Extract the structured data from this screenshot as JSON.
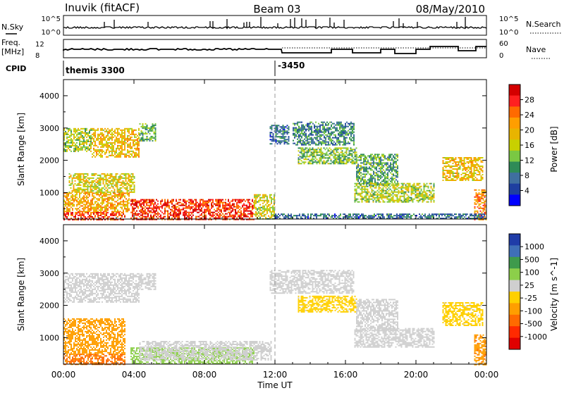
{
  "header": {
    "station": "Inuvik (fitACF)",
    "beam": "Beam 03",
    "date": "08/May/2010"
  },
  "nsky_panel": {
    "left_label": "N.Sky",
    "left_ticks": [
      "10^5",
      "10^0"
    ],
    "right_label": "N.Search",
    "right_ticks": [
      "10^5",
      "10^0"
    ]
  },
  "freq_panel": {
    "left_label_1": "Freq.",
    "left_label_2": "[MHz]",
    "left_ticks": [
      "12",
      "8"
    ],
    "right_label": "Nave",
    "right_ticks": [
      "60",
      "0"
    ]
  },
  "cpid_panel": {
    "label": "CPID",
    "entries": [
      "themis 3300",
      "-3450"
    ]
  },
  "time_axis": {
    "title": "Time UT",
    "ticks": [
      "00:00",
      "04:00",
      "08:00",
      "12:00",
      "16:00",
      "20:00",
      "00:00"
    ]
  },
  "chart_data": [
    {
      "type": "heatmap",
      "title": "",
      "ylabel": "Slant Range [km]",
      "xlabel": "Time UT",
      "xlim": [
        0,
        24
      ],
      "ylim": [
        180,
        4500
      ],
      "yticks": [
        1000,
        2000,
        3000,
        4000
      ],
      "colorbar_label": "Power [dB]",
      "colorbar_ticks": [
        "28",
        "24",
        "20",
        "16",
        "12",
        "8",
        "4"
      ],
      "colorbar_colors": [
        "#d40000",
        "#ff2020",
        "#ff6a00",
        "#ff9e00",
        "#e8b400",
        "#c8d000",
        "#7ac843",
        "#2e8b57",
        "#3f6fa0",
        "#1e3fa0",
        "#0000ff"
      ],
      "echo_regions": [
        {
          "t0": 0.0,
          "t1": 1.6,
          "r0": 2300,
          "r1": 3000,
          "level": 14
        },
        {
          "t0": 1.6,
          "t1": 4.3,
          "r0": 2100,
          "r1": 3000,
          "level": 18
        },
        {
          "t0": 4.3,
          "t1": 5.2,
          "r0": 2600,
          "r1": 3150,
          "level": 10
        },
        {
          "t0": 0.3,
          "t1": 4.0,
          "r0": 1000,
          "r1": 1600,
          "level": 16
        },
        {
          "t0": 0.0,
          "t1": 3.7,
          "r0": 400,
          "r1": 1000,
          "level": 20
        },
        {
          "t0": 0.0,
          "t1": 3.5,
          "r0": 180,
          "r1": 400,
          "level": 26
        },
        {
          "t0": 3.8,
          "t1": 10.8,
          "r0": 180,
          "r1": 800,
          "level": 27
        },
        {
          "t0": 10.8,
          "t1": 12.0,
          "r0": 180,
          "r1": 950,
          "level": 15
        },
        {
          "t0": 11.7,
          "t1": 12.8,
          "r0": 2500,
          "r1": 3100,
          "level": 6
        },
        {
          "t0": 13.0,
          "t1": 16.5,
          "r0": 2500,
          "r1": 3200,
          "level": 8
        },
        {
          "t0": 13.3,
          "t1": 16.6,
          "r0": 1900,
          "r1": 2400,
          "level": 12
        },
        {
          "t0": 16.6,
          "t1": 19.0,
          "r0": 1200,
          "r1": 2200,
          "level": 10
        },
        {
          "t0": 16.5,
          "t1": 21.0,
          "r0": 700,
          "r1": 1300,
          "level": 14
        },
        {
          "t0": 21.5,
          "t1": 23.8,
          "r0": 1400,
          "r1": 2100,
          "level": 18
        },
        {
          "t0": 23.3,
          "t1": 24.0,
          "r0": 180,
          "r1": 1100,
          "level": 22
        },
        {
          "t0": 12.0,
          "t1": 24.0,
          "r0": 180,
          "r1": 350,
          "level": 6
        }
      ]
    },
    {
      "type": "heatmap",
      "title": "",
      "ylabel": "Slant Range [km]",
      "xlabel": "Time UT",
      "xlim": [
        0,
        24
      ],
      "ylim": [
        180,
        4500
      ],
      "yticks": [
        1000,
        2000,
        3000,
        4000
      ],
      "colorbar_label": "Velocity [m s^-1]",
      "colorbar_ticks": [
        "1000",
        "500",
        "100",
        "25",
        "-25",
        "-100",
        "-500",
        "-1000"
      ],
      "colorbar_colors": [
        "#1f3ca8",
        "#3f6fb8",
        "#3e9a4c",
        "#8ccf4a",
        "#cfcfcf",
        "#ffd000",
        "#ff9e00",
        "#ff6a00",
        "#ff2a00",
        "#e00000"
      ],
      "echo_regions": [
        {
          "t0": 0.0,
          "t1": 4.3,
          "r0": 2100,
          "r1": 3000,
          "level": 0
        },
        {
          "t0": 4.3,
          "t1": 5.2,
          "r0": 2500,
          "r1": 3000,
          "level": 0
        },
        {
          "t0": 0.0,
          "t1": 3.5,
          "r0": 500,
          "r1": 1600,
          "level": -300
        },
        {
          "t0": 0.0,
          "t1": 3.5,
          "r0": 180,
          "r1": 500,
          "level": -600
        },
        {
          "t0": 3.8,
          "t1": 10.8,
          "r0": 180,
          "r1": 700,
          "level": 60
        },
        {
          "t0": 4.3,
          "t1": 11.8,
          "r0": 300,
          "r1": 900,
          "level": 0
        },
        {
          "t0": 11.7,
          "t1": 16.5,
          "r0": 2400,
          "r1": 3100,
          "level": 0
        },
        {
          "t0": 13.3,
          "t1": 16.6,
          "r0": 1800,
          "r1": 2300,
          "level": -60
        },
        {
          "t0": 16.6,
          "t1": 19.0,
          "r0": 1200,
          "r1": 2200,
          "level": 0
        },
        {
          "t0": 16.5,
          "t1": 21.0,
          "r0": 700,
          "r1": 1300,
          "level": 0
        },
        {
          "t0": 21.5,
          "t1": 23.8,
          "r0": 1400,
          "r1": 2100,
          "level": -60
        },
        {
          "t0": 23.3,
          "t1": 24.0,
          "r0": 180,
          "r1": 1100,
          "level": -400
        }
      ]
    }
  ]
}
